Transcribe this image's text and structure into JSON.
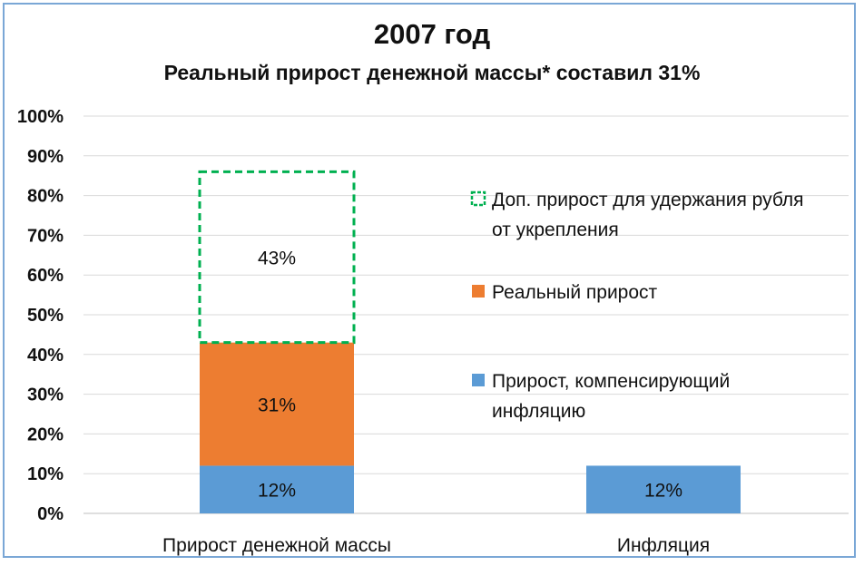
{
  "chart_data": {
    "type": "bar",
    "stacked": true,
    "title": "2007 год",
    "subtitle": "Реальный прирост денежной массы* составил 31%",
    "categories": [
      "Прирост денежной массы",
      "Инфляция"
    ],
    "series": [
      {
        "name": "Прирост, компенсирующий инфляцию",
        "values": [
          12,
          12
        ],
        "labels": [
          "12%",
          "12%"
        ],
        "color": "#5b9bd5",
        "style": "solid"
      },
      {
        "name": "Реальный прирост",
        "values": [
          31,
          0
        ],
        "labels": [
          "31%",
          ""
        ],
        "color": "#ed7d31",
        "style": "solid"
      },
      {
        "name": "Доп. прирост для удержания рубля от укрепления",
        "values": [
          43,
          0
        ],
        "labels": [
          "43%",
          ""
        ],
        "color": "#00b050",
        "style": "dashed-outline"
      }
    ],
    "legend_lines": [
      [
        "Прирост, компенсирующий",
        "инфляцию"
      ],
      [
        "Реальный прирост"
      ],
      [
        "Доп. прирост для удержания рубля",
        "от укрепления"
      ]
    ],
    "ylim": [
      0,
      100
    ],
    "yticks": [
      "0%",
      "10%",
      "20%",
      "30%",
      "40%",
      "50%",
      "60%",
      "70%",
      "80%",
      "90%",
      "100%"
    ],
    "grid": true,
    "legend_position": "right"
  }
}
